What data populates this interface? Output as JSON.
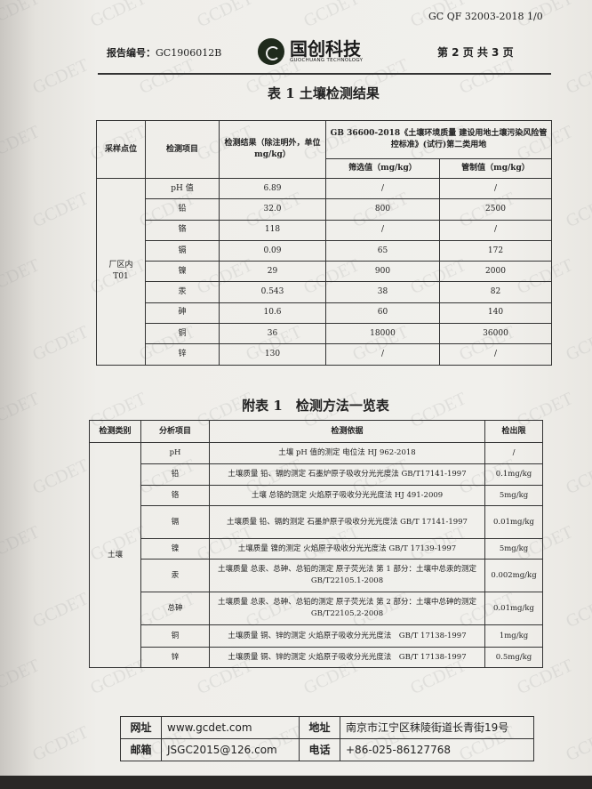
{
  "header": {
    "form_code": "GC QF 32003-2018 1/0",
    "report_no_label": "报告编号：",
    "report_no": "GC1906012B",
    "logo_cn": "国创科技",
    "logo_en": "GUOCHUANG TECHNOLOGY",
    "page_info": "第 2 页 共 3 页",
    "watermark": "GCDET"
  },
  "table1": {
    "title": "表 1 土壤检测结果",
    "headers": {
      "site": "采样点位",
      "item": "检测项目",
      "result": "检测结果（除注明外，单位 mg/kg）",
      "standard": "GB 36600-2018《土壤环境质量 建设用地土壤污染风险管控标准》(试行)第二类用地",
      "screening": "筛选值（mg/kg）",
      "control": "管制值（mg/kg）"
    },
    "site": "厂区内\nT01",
    "rows": [
      {
        "item": "pH 值",
        "result": "6.89",
        "screening": "/",
        "control": "/"
      },
      {
        "item": "铅",
        "result": "32.0",
        "screening": "800",
        "control": "2500"
      },
      {
        "item": "铬",
        "result": "118",
        "screening": "/",
        "control": "/"
      },
      {
        "item": "镉",
        "result": "0.09",
        "screening": "65",
        "control": "172"
      },
      {
        "item": "镍",
        "result": "29",
        "screening": "900",
        "control": "2000"
      },
      {
        "item": "汞",
        "result": "0.543",
        "screening": "38",
        "control": "82"
      },
      {
        "item": "砷",
        "result": "10.6",
        "screening": "60",
        "control": "140"
      },
      {
        "item": "铜",
        "result": "36",
        "screening": "18000",
        "control": "36000"
      },
      {
        "item": "锌",
        "result": "130",
        "screening": "/",
        "control": "/"
      }
    ]
  },
  "table2": {
    "title": "附表 1　检测方法一览表",
    "headers": {
      "category": "检测类别",
      "item": "分析项目",
      "basis": "检测依据",
      "limit": "检出限"
    },
    "category": "土壤",
    "rows": [
      {
        "item": "pH",
        "basis": "土壤 pH 值的测定 电位法 HJ 962-2018",
        "limit": "/"
      },
      {
        "item": "铅",
        "basis": "土壤质量 铅、镉的测定 石墨炉原子吸收分光光度法 GB/T17141-1997",
        "limit": "0.1mg/kg"
      },
      {
        "item": "铬",
        "basis": "土壤 总铬的测定 火焰原子吸收分光光度法 HJ 491-2009",
        "limit": "5mg/kg"
      },
      {
        "item": "镉",
        "basis": "土壤质量 铅、镉的测定 石墨炉原子吸收分光光度法 GB/T 17141-1997",
        "limit": "0.01mg/kg"
      },
      {
        "item": "镍",
        "basis": "土壤质量 镍的测定 火焰原子吸收分光光度法 GB/T 17139-1997",
        "limit": "5mg/kg"
      },
      {
        "item": "汞",
        "basis": "土壤质量 总汞、总砷、总铅的测定 原子荧光法 第 1 部分：土壤中总汞的测定 GB/T22105.1-2008",
        "limit": "0.002mg/kg"
      },
      {
        "item": "总砷",
        "basis": "土壤质量 总汞、总砷、总铅的测定 原子荧光法 第 2 部分：土壤中总砷的测定 GB/T22105.2-2008",
        "limit": "0.01mg/kg"
      },
      {
        "item": "铜",
        "basis": "土壤质量 铜、锌的测定 火焰原子吸收分光光度法　GB/T 17138-1997",
        "limit": "1mg/kg"
      },
      {
        "item": "锌",
        "basis": "土壤质量 铜、锌的测定 火焰原子吸收分光光度法　GB/T 17138-1997",
        "limit": "0.5mg/kg"
      }
    ]
  },
  "footer": {
    "website_label": "网址",
    "website": "www.gcdet.com",
    "address_label": "地址",
    "address": "南京市江宁区秣陵街道长青街19号",
    "email_label": "邮箱",
    "email": "JSGC2015@126.com",
    "phone_label": "电话",
    "phone": "+86-025-86127768"
  }
}
